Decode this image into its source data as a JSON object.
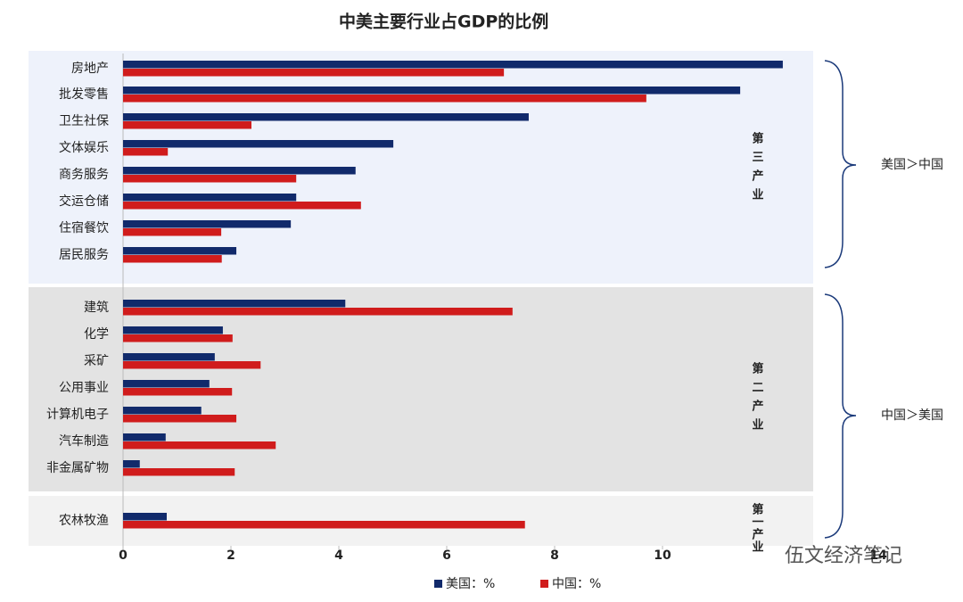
{
  "chart_data": {
    "type": "barh",
    "title": "中美主要行业占GDP的比例",
    "categories": [
      "房地产",
      "批发零售",
      "卫生社保",
      "文体娱乐",
      "商务服务",
      "交运仓储",
      "住宿餐饮",
      "居民服务",
      "建筑",
      "化学",
      "采矿",
      "公用事业",
      "计算机电子",
      "汽车制造",
      "非金属矿物",
      "农林牧渔"
    ],
    "series": [
      {
        "name": "美国：%",
        "color": "#112a6b",
        "values": [
          12.23,
          11.44,
          7.52,
          5.01,
          4.31,
          3.21,
          3.11,
          2.1,
          4.12,
          1.85,
          1.7,
          1.6,
          1.45,
          0.79,
          0.31,
          0.81
        ]
      },
      {
        "name": "中国：%",
        "color": "#d01c1c",
        "values": [
          7.06,
          9.7,
          2.38,
          0.83,
          3.21,
          4.41,
          1.82,
          1.83,
          7.22,
          2.03,
          2.55,
          2.02,
          2.1,
          2.83,
          2.07,
          7.45
        ]
      }
    ],
    "xlim": [
      0,
      14
    ],
    "xticks": [
      0,
      2,
      4,
      6,
      8,
      10,
      14
    ],
    "sections": [
      "第三产业",
      "第二产业",
      "第一产业"
    ],
    "brackets": [
      "美国＞中国",
      "中国＞美国"
    ],
    "watermark": "伍文经济笔记"
  }
}
